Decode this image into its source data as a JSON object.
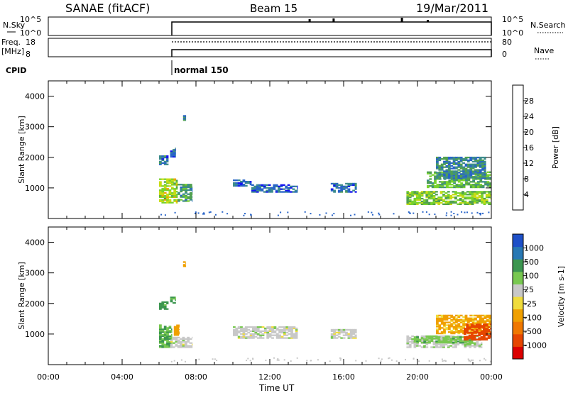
{
  "header": {
    "station": "SANAE (fitACF)",
    "beam": "Beam 15",
    "date": "19/Mar/2011"
  },
  "status_panels": {
    "nsky_label": "N.Sky",
    "nsky_ticks": [
      "10^5",
      "10^0"
    ],
    "nsearch_label": "N.Search",
    "nsearch_ticks": [
      "10^5",
      "10^0"
    ],
    "freq_label_line1": "Freq.",
    "freq_label_line2": "[MHz]",
    "freq_ticks": [
      "18",
      "8"
    ],
    "nave_label": "Nave",
    "nave_ticks": [
      "80",
      "0"
    ],
    "cpid_label": "CPID",
    "cpid_value": "normal 150",
    "operation_start_hour": 6.0
  },
  "axes": {
    "ylabel": "Slant Range [km]",
    "yticks": [
      "1000",
      "2000",
      "3000",
      "4000"
    ],
    "xlabel": "Time UT",
    "xticks": [
      "00:00",
      "04:00",
      "08:00",
      "12:00",
      "16:00",
      "20:00",
      "00:00"
    ]
  },
  "colorbars": {
    "power": {
      "label": "Power [dB]",
      "ticks": [
        "4",
        "8",
        "12",
        "16",
        "20",
        "24",
        "28"
      ],
      "colors": [
        "#1414f0",
        "#2864c8",
        "#3c8c8c",
        "#50a050",
        "#78d22d",
        "#c8dc14",
        "#f0a000",
        "#f07800",
        "#e63c00",
        "#dc0000"
      ]
    },
    "velocity": {
      "label": "Velocity [m s-1]",
      "ticks": [
        "1000",
        "500",
        "100",
        "25",
        "-25",
        "-100",
        "-500",
        "-1000"
      ],
      "colors": [
        "#1e50c8",
        "#2878b4",
        "#3c9650",
        "#78c850",
        "#c8c8c8",
        "#f0dc3c",
        "#f0a000",
        "#f07800",
        "#e64600",
        "#dc0000"
      ]
    }
  },
  "chart_data": {
    "type": "heatmap",
    "x_unit": "hours UT (00:00 to 24:00)",
    "y_unit": "slant range km",
    "xlim": [
      0,
      24
    ],
    "ylim": [
      0,
      4500
    ],
    "series": [
      {
        "name": "Power",
        "units": "dB",
        "clusters": [
          {
            "t": [
              6.0,
              6.5
            ],
            "r": [
              1750,
              2050
            ],
            "v": 6
          },
          {
            "t": [
              6.6,
              6.9
            ],
            "r": [
              2000,
              2300
            ],
            "v": 6
          },
          {
            "t": [
              7.3,
              7.45
            ],
            "r": [
              3200,
              3350
            ],
            "v": 8
          },
          {
            "t": [
              6.0,
              7.0
            ],
            "r": [
              500,
              1300
            ],
            "v": 16
          },
          {
            "t": [
              7.0,
              7.8
            ],
            "r": [
              550,
              1100
            ],
            "v": 10
          },
          {
            "t": [
              10.0,
              11.0
            ],
            "r": [
              1050,
              1250
            ],
            "v": 5
          },
          {
            "t": [
              11.0,
              13.5
            ],
            "r": [
              850,
              1100
            ],
            "v": 5
          },
          {
            "t": [
              15.3,
              16.7
            ],
            "r": [
              850,
              1150
            ],
            "v": 6
          },
          {
            "t": [
              19.4,
              24.0
            ],
            "r": [
              450,
              900
            ],
            "v": 14
          },
          {
            "t": [
              20.5,
              24.0
            ],
            "r": [
              1000,
              1500
            ],
            "v": 12
          },
          {
            "t": [
              21.0,
              23.7
            ],
            "r": [
              1300,
              2000
            ],
            "v": 8
          }
        ]
      },
      {
        "name": "Velocity",
        "units": "m s-1",
        "clusters": [
          {
            "t": [
              6.0,
              6.5
            ],
            "r": [
              1800,
              2050
            ],
            "v": 120
          },
          {
            "t": [
              6.6,
              6.9
            ],
            "r": [
              2000,
              2200
            ],
            "v": 120
          },
          {
            "t": [
              7.3,
              7.45
            ],
            "r": [
              3200,
              3350
            ],
            "v": -200
          },
          {
            "t": [
              6.0,
              6.7
            ],
            "r": [
              550,
              1300
            ],
            "v": 100
          },
          {
            "t": [
              6.6,
              7.8
            ],
            "r": [
              550,
              900
            ],
            "v": 0
          },
          {
            "t": [
              6.8,
              7.1
            ],
            "r": [
              950,
              1300
            ],
            "v": -150
          },
          {
            "t": [
              10.0,
              13.5
            ],
            "r": [
              850,
              1250
            ],
            "v": 0
          },
          {
            "t": [
              15.3,
              16.7
            ],
            "r": [
              850,
              1150
            ],
            "v": 0
          },
          {
            "t": [
              19.4,
              23.5
            ],
            "r": [
              550,
              950
            ],
            "v": 10
          },
          {
            "t": [
              19.8,
              23.0
            ],
            "r": [
              700,
              900
            ],
            "v": 80
          },
          {
            "t": [
              21.0,
              24.0
            ],
            "r": [
              1000,
              1600
            ],
            "v": -120
          },
          {
            "t": [
              22.5,
              24.0
            ],
            "r": [
              800,
              1300
            ],
            "v": -700
          }
        ]
      }
    ]
  }
}
